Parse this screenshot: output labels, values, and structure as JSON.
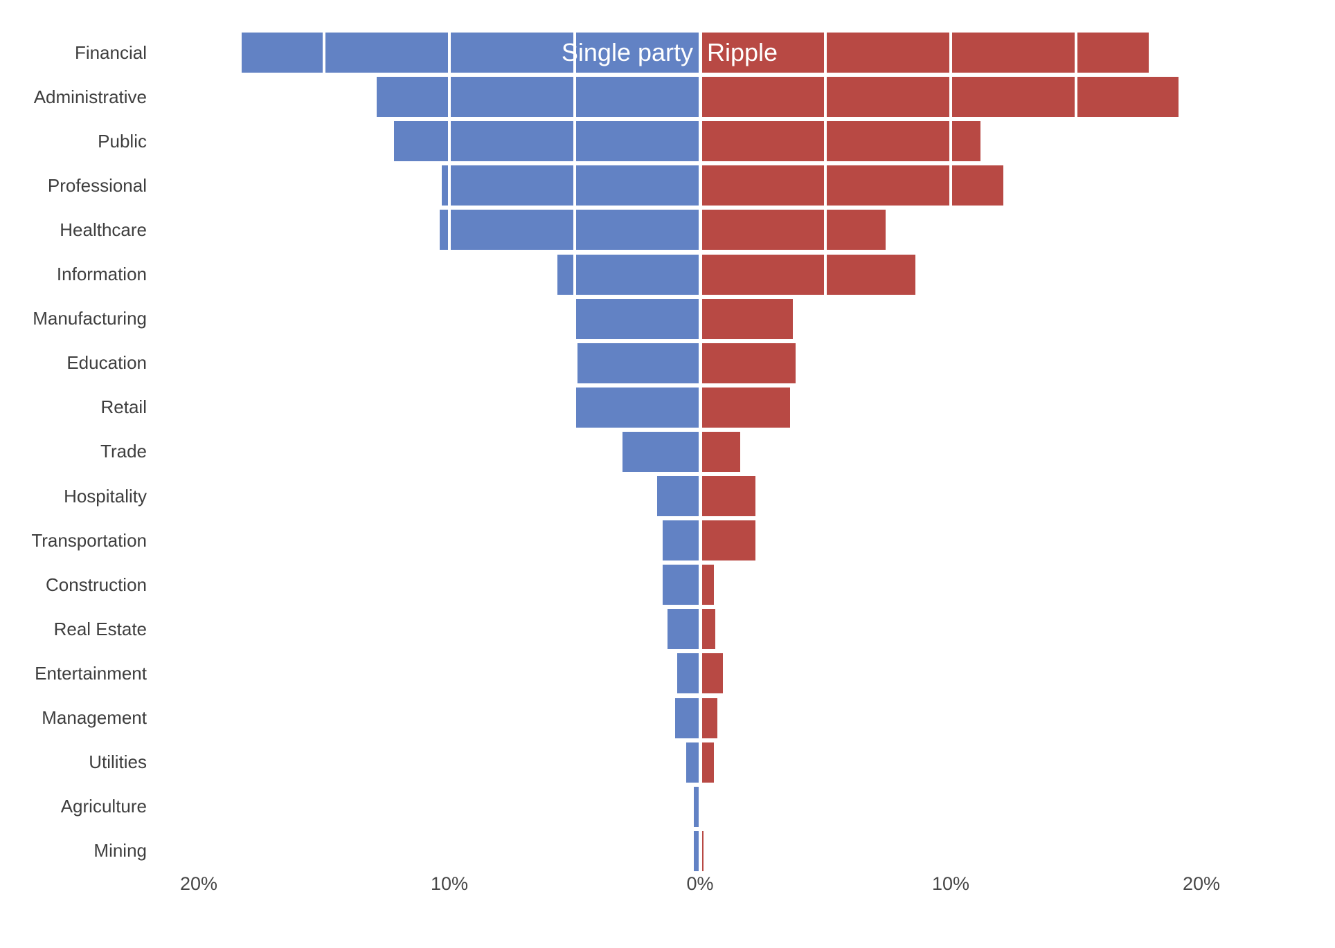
{
  "chart_data": {
    "type": "bar",
    "variant": "diverging-horizontal",
    "title": "",
    "xlabel": "",
    "ylabel": "",
    "grid": true,
    "grid_step_pct": 5,
    "grid_color": "#ffffff",
    "xlim": [
      -21,
      21
    ],
    "x_ticks": [
      {
        "value": -20,
        "label": "20%"
      },
      {
        "value": -10,
        "label": "10%"
      },
      {
        "value": 0,
        "label": "0%"
      },
      {
        "value": 10,
        "label": "10%"
      },
      {
        "value": 20,
        "label": "20%"
      }
    ],
    "categories": [
      "Financial",
      "Administrative",
      "Public",
      "Professional",
      "Healthcare",
      "Information",
      "Manufacturing",
      "Education",
      "Retail",
      "Trade",
      "Hospitality",
      "Transportation",
      "Construction",
      "Real Estate",
      "Entertainment",
      "Management",
      "Utilities",
      "Agriculture",
      "Mining"
    ],
    "series": [
      {
        "name": "Single party",
        "side": "left",
        "color": "#6282C4",
        "values": [
          18.3,
          12.9,
          12.2,
          10.3,
          10.4,
          5.7,
          5.0,
          4.9,
          5.0,
          3.1,
          1.7,
          1.5,
          1.5,
          1.3,
          0.9,
          1.0,
          0.55,
          0.25,
          0.25
        ]
      },
      {
        "name": "Ripple",
        "side": "right",
        "color": "#B84944",
        "values": [
          17.9,
          19.1,
          11.2,
          12.1,
          7.4,
          8.6,
          3.7,
          3.8,
          3.6,
          1.6,
          2.2,
          2.2,
          0.55,
          0.6,
          0.9,
          0.7,
          0.55,
          0.0,
          0.15
        ]
      }
    ],
    "legend": {
      "position": "top-inside",
      "text_color": "#ffffff",
      "left_label": "Single party",
      "right_label": "Ripple"
    },
    "label_color": "#3e3e3e",
    "tick_color": "#474747"
  }
}
